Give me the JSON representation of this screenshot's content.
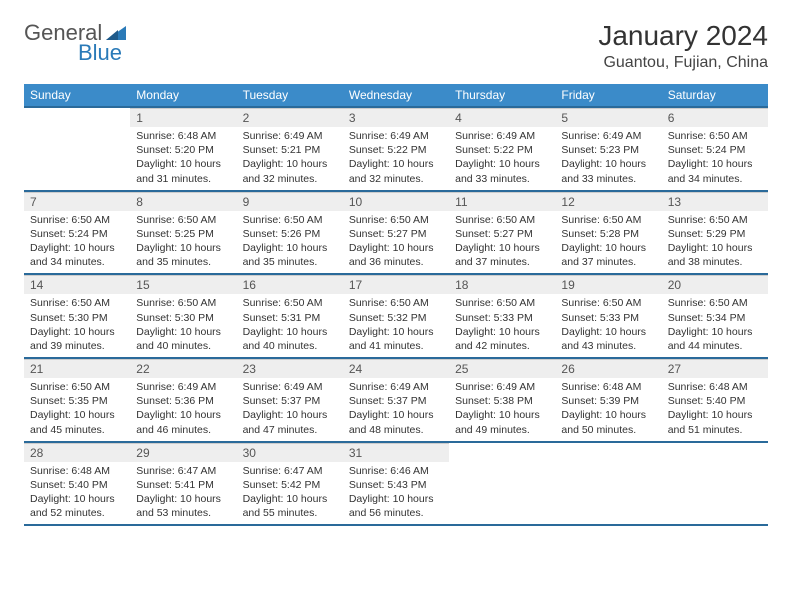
{
  "logo": {
    "text1": "General",
    "text2": "Blue"
  },
  "title": "January 2024",
  "location": "Guantou, Fujian, China",
  "colors": {
    "header_bg": "#3b8bc9",
    "header_border": "#2a6a9a",
    "daynum_bg": "#eeeeee",
    "text": "#333333"
  },
  "day_headers": [
    "Sunday",
    "Monday",
    "Tuesday",
    "Wednesday",
    "Thursday",
    "Friday",
    "Saturday"
  ],
  "weeks": [
    [
      null,
      {
        "n": "1",
        "sr": "Sunrise: 6:48 AM",
        "ss": "Sunset: 5:20 PM",
        "dl": "Daylight: 10 hours and 31 minutes."
      },
      {
        "n": "2",
        "sr": "Sunrise: 6:49 AM",
        "ss": "Sunset: 5:21 PM",
        "dl": "Daylight: 10 hours and 32 minutes."
      },
      {
        "n": "3",
        "sr": "Sunrise: 6:49 AM",
        "ss": "Sunset: 5:22 PM",
        "dl": "Daylight: 10 hours and 32 minutes."
      },
      {
        "n": "4",
        "sr": "Sunrise: 6:49 AM",
        "ss": "Sunset: 5:22 PM",
        "dl": "Daylight: 10 hours and 33 minutes."
      },
      {
        "n": "5",
        "sr": "Sunrise: 6:49 AM",
        "ss": "Sunset: 5:23 PM",
        "dl": "Daylight: 10 hours and 33 minutes."
      },
      {
        "n": "6",
        "sr": "Sunrise: 6:50 AM",
        "ss": "Sunset: 5:24 PM",
        "dl": "Daylight: 10 hours and 34 minutes."
      }
    ],
    [
      {
        "n": "7",
        "sr": "Sunrise: 6:50 AM",
        "ss": "Sunset: 5:24 PM",
        "dl": "Daylight: 10 hours and 34 minutes."
      },
      {
        "n": "8",
        "sr": "Sunrise: 6:50 AM",
        "ss": "Sunset: 5:25 PM",
        "dl": "Daylight: 10 hours and 35 minutes."
      },
      {
        "n": "9",
        "sr": "Sunrise: 6:50 AM",
        "ss": "Sunset: 5:26 PM",
        "dl": "Daylight: 10 hours and 35 minutes."
      },
      {
        "n": "10",
        "sr": "Sunrise: 6:50 AM",
        "ss": "Sunset: 5:27 PM",
        "dl": "Daylight: 10 hours and 36 minutes."
      },
      {
        "n": "11",
        "sr": "Sunrise: 6:50 AM",
        "ss": "Sunset: 5:27 PM",
        "dl": "Daylight: 10 hours and 37 minutes."
      },
      {
        "n": "12",
        "sr": "Sunrise: 6:50 AM",
        "ss": "Sunset: 5:28 PM",
        "dl": "Daylight: 10 hours and 37 minutes."
      },
      {
        "n": "13",
        "sr": "Sunrise: 6:50 AM",
        "ss": "Sunset: 5:29 PM",
        "dl": "Daylight: 10 hours and 38 minutes."
      }
    ],
    [
      {
        "n": "14",
        "sr": "Sunrise: 6:50 AM",
        "ss": "Sunset: 5:30 PM",
        "dl": "Daylight: 10 hours and 39 minutes."
      },
      {
        "n": "15",
        "sr": "Sunrise: 6:50 AM",
        "ss": "Sunset: 5:30 PM",
        "dl": "Daylight: 10 hours and 40 minutes."
      },
      {
        "n": "16",
        "sr": "Sunrise: 6:50 AM",
        "ss": "Sunset: 5:31 PM",
        "dl": "Daylight: 10 hours and 40 minutes."
      },
      {
        "n": "17",
        "sr": "Sunrise: 6:50 AM",
        "ss": "Sunset: 5:32 PM",
        "dl": "Daylight: 10 hours and 41 minutes."
      },
      {
        "n": "18",
        "sr": "Sunrise: 6:50 AM",
        "ss": "Sunset: 5:33 PM",
        "dl": "Daylight: 10 hours and 42 minutes."
      },
      {
        "n": "19",
        "sr": "Sunrise: 6:50 AM",
        "ss": "Sunset: 5:33 PM",
        "dl": "Daylight: 10 hours and 43 minutes."
      },
      {
        "n": "20",
        "sr": "Sunrise: 6:50 AM",
        "ss": "Sunset: 5:34 PM",
        "dl": "Daylight: 10 hours and 44 minutes."
      }
    ],
    [
      {
        "n": "21",
        "sr": "Sunrise: 6:50 AM",
        "ss": "Sunset: 5:35 PM",
        "dl": "Daylight: 10 hours and 45 minutes."
      },
      {
        "n": "22",
        "sr": "Sunrise: 6:49 AM",
        "ss": "Sunset: 5:36 PM",
        "dl": "Daylight: 10 hours and 46 minutes."
      },
      {
        "n": "23",
        "sr": "Sunrise: 6:49 AM",
        "ss": "Sunset: 5:37 PM",
        "dl": "Daylight: 10 hours and 47 minutes."
      },
      {
        "n": "24",
        "sr": "Sunrise: 6:49 AM",
        "ss": "Sunset: 5:37 PM",
        "dl": "Daylight: 10 hours and 48 minutes."
      },
      {
        "n": "25",
        "sr": "Sunrise: 6:49 AM",
        "ss": "Sunset: 5:38 PM",
        "dl": "Daylight: 10 hours and 49 minutes."
      },
      {
        "n": "26",
        "sr": "Sunrise: 6:48 AM",
        "ss": "Sunset: 5:39 PM",
        "dl": "Daylight: 10 hours and 50 minutes."
      },
      {
        "n": "27",
        "sr": "Sunrise: 6:48 AM",
        "ss": "Sunset: 5:40 PM",
        "dl": "Daylight: 10 hours and 51 minutes."
      }
    ],
    [
      {
        "n": "28",
        "sr": "Sunrise: 6:48 AM",
        "ss": "Sunset: 5:40 PM",
        "dl": "Daylight: 10 hours and 52 minutes."
      },
      {
        "n": "29",
        "sr": "Sunrise: 6:47 AM",
        "ss": "Sunset: 5:41 PM",
        "dl": "Daylight: 10 hours and 53 minutes."
      },
      {
        "n": "30",
        "sr": "Sunrise: 6:47 AM",
        "ss": "Sunset: 5:42 PM",
        "dl": "Daylight: 10 hours and 55 minutes."
      },
      {
        "n": "31",
        "sr": "Sunrise: 6:46 AM",
        "ss": "Sunset: 5:43 PM",
        "dl": "Daylight: 10 hours and 56 minutes."
      },
      null,
      null,
      null
    ]
  ]
}
